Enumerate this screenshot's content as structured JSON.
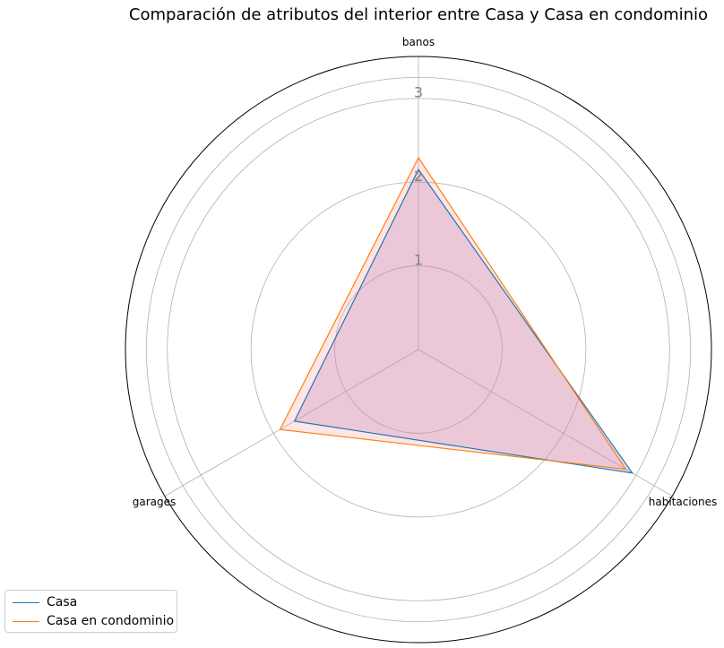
{
  "chart_data": {
    "type": "radar",
    "title": "Comparación de atributos del interior entre Casa y Casa en condominio",
    "axes": [
      "banos",
      "habitaciones",
      "garages"
    ],
    "rlim": [
      0,
      3.5
    ],
    "ring_ticks": [
      1,
      2,
      3
    ],
    "ring_tick_labels": [
      "1",
      "2",
      "3"
    ],
    "grid": true,
    "legend_position": "lower-left",
    "series": [
      {
        "name": "Casa",
        "values": [
          2.15,
          2.95,
          1.71
        ],
        "color": "#1f77b4",
        "fill": "#9467bd"
      },
      {
        "name": "Casa en condominio",
        "values": [
          2.29,
          2.86,
          1.91
        ],
        "color": "#ff7f0e",
        "fill": "#ff9999"
      }
    ]
  }
}
